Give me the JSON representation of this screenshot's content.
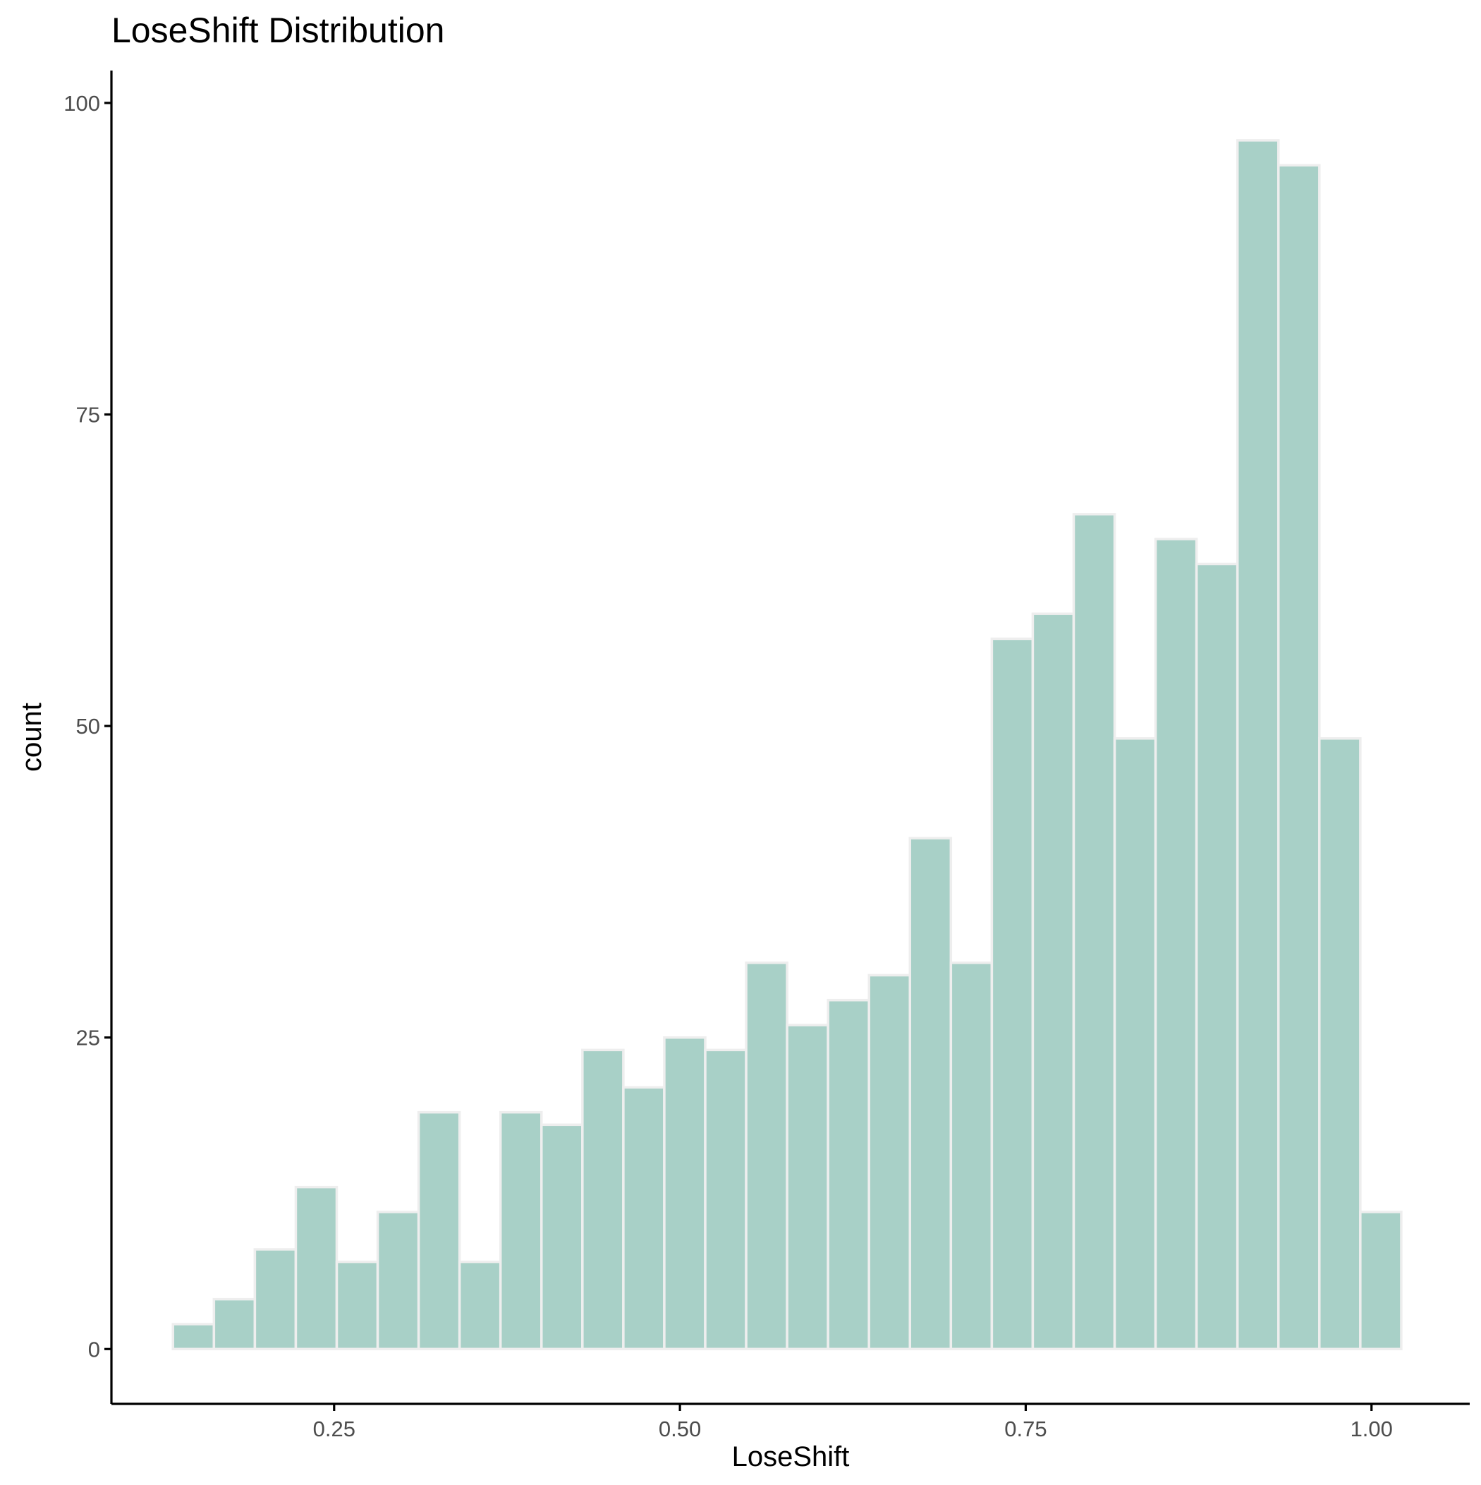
{
  "chart_data": {
    "type": "bar",
    "title": "LoseShift Distribution",
    "xlabel": "LoseShift",
    "ylabel": "count",
    "xlim": [
      0.089,
      1.071
    ],
    "ylim": [
      -4.4,
      102.6
    ],
    "x_ticks": [
      {
        "value": 0.25,
        "label": "0.25"
      },
      {
        "value": 0.5,
        "label": "0.50"
      },
      {
        "value": 0.75,
        "label": "0.75"
      },
      {
        "value": 1.0,
        "label": "1.00"
      }
    ],
    "y_ticks": [
      {
        "value": 0,
        "label": "0"
      },
      {
        "value": 25,
        "label": "25"
      },
      {
        "value": 50,
        "label": "50"
      },
      {
        "value": 75,
        "label": "75"
      },
      {
        "value": 100,
        "label": "100"
      }
    ],
    "bin_start": 0.1335,
    "bin_width": 0.0296,
    "values": [
      2,
      4,
      8,
      13,
      7,
      11,
      19,
      7,
      19,
      18,
      24,
      21,
      25,
      24,
      31,
      26,
      28,
      30,
      41,
      31,
      57,
      59,
      67,
      49,
      65,
      63,
      97,
      95,
      49,
      11
    ],
    "fill_color": "#a8d0c7",
    "edge_color": "#eeeeee",
    "grid": false,
    "legend": "none"
  }
}
